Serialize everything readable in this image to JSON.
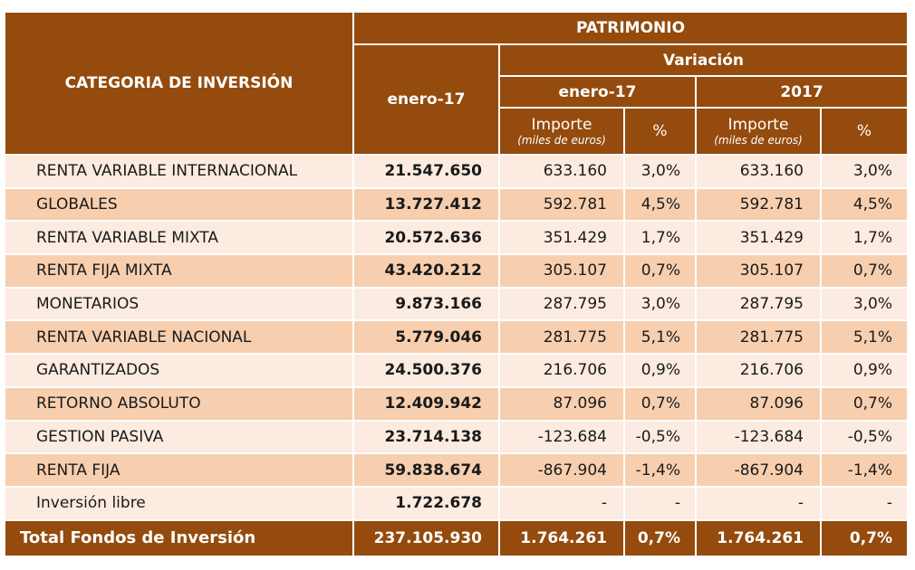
{
  "header": {
    "category": "CATEGORIA DE INVERSIÓN",
    "patrimonio": "PATRIMONIO",
    "variacion": "Variación",
    "col_enero": "enero-17",
    "var_enero": "enero-17",
    "var_2017": "2017",
    "importe": "Importe",
    "importe_unit": "(miles de euros)",
    "pct": "%"
  },
  "rows": [
    {
      "cat": "RENTA VARIABLE INTERNACIONAL",
      "enero": "21.547.650",
      "imp1": "633.160",
      "pct1": "3,0%",
      "imp2": "633.160",
      "pct2": "3,0%"
    },
    {
      "cat": "GLOBALES",
      "enero": "13.727.412",
      "imp1": "592.781",
      "pct1": "4,5%",
      "imp2": "592.781",
      "pct2": "4,5%"
    },
    {
      "cat": "RENTA VARIABLE MIXTA",
      "enero": "20.572.636",
      "imp1": "351.429",
      "pct1": "1,7%",
      "imp2": "351.429",
      "pct2": "1,7%"
    },
    {
      "cat": "RENTA FIJA MIXTA",
      "enero": "43.420.212",
      "imp1": "305.107",
      "pct1": "0,7%",
      "imp2": "305.107",
      "pct2": "0,7%"
    },
    {
      "cat": "MONETARIOS",
      "enero": "9.873.166",
      "imp1": "287.795",
      "pct1": "3,0%",
      "imp2": "287.795",
      "pct2": "3,0%"
    },
    {
      "cat": "RENTA VARIABLE NACIONAL",
      "enero": "5.779.046",
      "imp1": "281.775",
      "pct1": "5,1%",
      "imp2": "281.775",
      "pct2": "5,1%"
    },
    {
      "cat": "GARANTIZADOS",
      "enero": "24.500.376",
      "imp1": "216.706",
      "pct1": "0,9%",
      "imp2": "216.706",
      "pct2": "0,9%"
    },
    {
      "cat": "RETORNO ABSOLUTO",
      "enero": "12.409.942",
      "imp1": "87.096",
      "pct1": "0,7%",
      "imp2": "87.096",
      "pct2": "0,7%"
    },
    {
      "cat": "GESTION PASIVA",
      "enero": "23.714.138",
      "imp1": "-123.684",
      "pct1": "-0,5%",
      "imp2": "-123.684",
      "pct2": "-0,5%"
    },
    {
      "cat": "RENTA FIJA",
      "enero": "59.838.674",
      "imp1": "-867.904",
      "pct1": "-1,4%",
      "imp2": "-867.904",
      "pct2": "-1,4%"
    },
    {
      "cat": "Inversión libre",
      "enero": "1.722.678",
      "imp1": "-",
      "pct1": "-",
      "imp2": "-",
      "pct2": "-"
    }
  ],
  "total": {
    "cat": "Total Fondos de Inversión",
    "enero": "237.105.930",
    "imp1": "1.764.261",
    "pct1": "0,7%",
    "imp2": "1.764.261",
    "pct2": "0,7%"
  },
  "colors": {
    "header_bg": "#944b0d",
    "row_light": "#fcebe0",
    "row_dark": "#f7cfaf"
  }
}
